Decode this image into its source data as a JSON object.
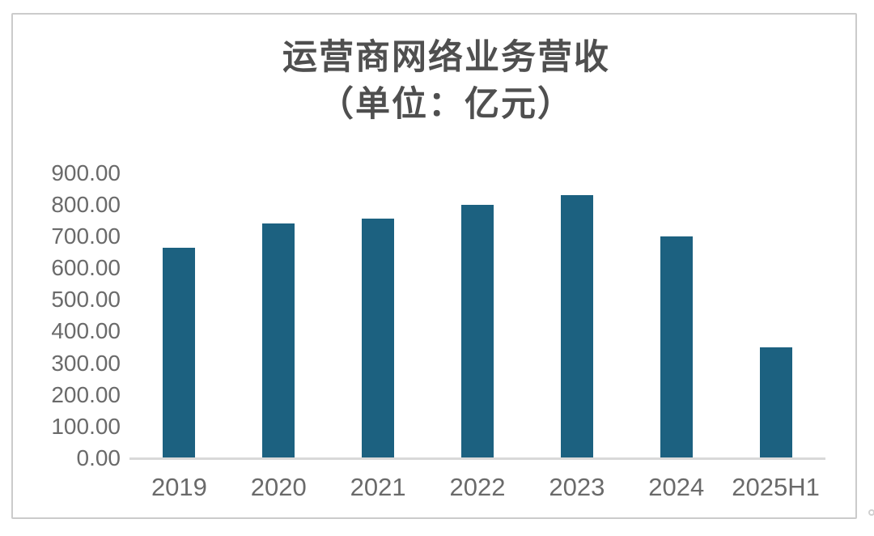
{
  "chart_data": {
    "type": "bar",
    "title": "运营商网络业务营收",
    "subtitle": "（单位：亿元）",
    "categories": [
      "2019",
      "2020",
      "2021",
      "2022",
      "2023",
      "2024",
      "2025H1"
    ],
    "values": [
      665,
      740,
      755,
      800,
      830,
      700,
      350
    ],
    "xlabel": "",
    "ylabel": "",
    "ylim": [
      0,
      900
    ],
    "ytick_step": 100,
    "ytick_labels": [
      "0.00",
      "100.00",
      "200.00",
      "300.00",
      "400.00",
      "500.00",
      "600.00",
      "700.00",
      "800.00",
      "900.00"
    ],
    "grid": false,
    "legend_position": "none",
    "bar_color": "#1c6180",
    "axis_line_color": "#d9d9d9",
    "title_color": "#4f4f4f",
    "tick_text_color": "#6a6a6a"
  }
}
